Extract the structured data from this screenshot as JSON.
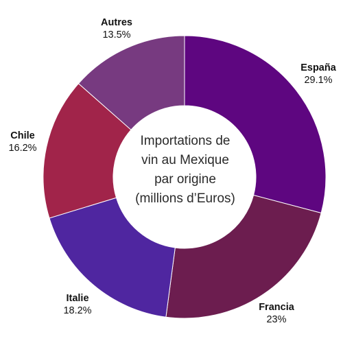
{
  "chart_data": {
    "type": "pie",
    "donut": true,
    "title_lines": [
      "Importations de",
      "vin au Mexique",
      "par origine",
      "(millions d’Euros)"
    ],
    "categories": [
      "España",
      "Francia",
      "Italie",
      "Chile",
      "Autres"
    ],
    "values": [
      29.1,
      23,
      18.2,
      16.2,
      13.5
    ],
    "value_labels": [
      "29.1%",
      "23%",
      "18.2%",
      "16.2%",
      "13.5%"
    ],
    "colors": [
      "#5e0680",
      "#6c1d4f",
      "#4f26a0",
      "#a1244a",
      "#773a80"
    ],
    "legend": "none",
    "start_angle_deg": 0,
    "direction": "clockwise"
  }
}
